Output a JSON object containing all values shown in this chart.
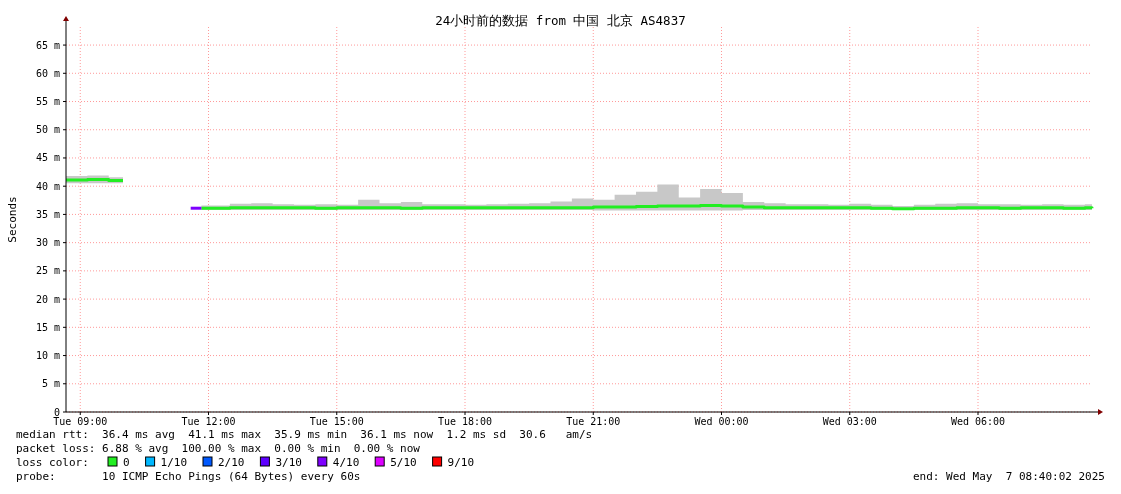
{
  "chart_data": {
    "type": "line",
    "title": "24小时前的数据 from 中国 北京 AS4837",
    "ylabel": "Seconds",
    "legend_title": "loss color:",
    "legend": "bottom",
    "grid": true,
    "line_style": "solid",
    "marker": "none",
    "x": [
      "2025-05-06T08:40",
      "2025-05-06T09:10",
      "2025-05-06T09:40",
      "2025-05-06T10:00",
      "2025-05-06T10:30",
      "2025-05-06T11:35",
      "2025-05-06T11:50",
      "2025-05-06T12:30",
      "2025-05-06T13:00",
      "2025-05-06T13:30",
      "2025-05-06T14:00",
      "2025-05-06T14:30",
      "2025-05-06T15:00",
      "2025-05-06T15:30",
      "2025-05-06T16:00",
      "2025-05-06T16:30",
      "2025-05-06T17:00",
      "2025-05-06T17:30",
      "2025-05-06T18:00",
      "2025-05-06T18:30",
      "2025-05-06T19:00",
      "2025-05-06T19:30",
      "2025-05-06T20:00",
      "2025-05-06T20:30",
      "2025-05-06T21:00",
      "2025-05-06T21:30",
      "2025-05-06T22:00",
      "2025-05-06T22:30",
      "2025-05-06T23:00",
      "2025-05-06T23:30",
      "2025-05-07T00:00",
      "2025-05-07T00:30",
      "2025-05-07T01:00",
      "2025-05-07T01:30",
      "2025-05-07T02:00",
      "2025-05-07T02:30",
      "2025-05-07T03:00",
      "2025-05-07T03:30",
      "2025-05-07T04:00",
      "2025-05-07T04:30",
      "2025-05-07T05:00",
      "2025-05-07T05:30",
      "2025-05-07T06:00",
      "2025-05-07T06:30",
      "2025-05-07T07:00",
      "2025-05-07T07:30",
      "2025-05-07T08:00",
      "2025-05-07T08:30",
      "2025-05-07T08:40"
    ],
    "series": [
      {
        "name": "0",
        "color": "#22ee22",
        "values": [
          41.1,
          41.2,
          41.0,
          41.0,
          null,
          null,
          36.1,
          36.2,
          36.2,
          36.2,
          36.2,
          36.1,
          36.2,
          36.2,
          36.2,
          36.1,
          36.2,
          36.2,
          36.2,
          36.2,
          36.2,
          36.2,
          36.2,
          36.2,
          36.3,
          36.3,
          36.4,
          36.5,
          36.5,
          36.6,
          36.5,
          36.3,
          36.2,
          36.2,
          36.2,
          36.2,
          36.2,
          36.1,
          36.0,
          36.1,
          36.1,
          36.2,
          36.2,
          36.1,
          36.2,
          36.2,
          36.1,
          36.2,
          36.1
        ],
        "lower": [
          40.5,
          40.5,
          40.5,
          40.5,
          null,
          null,
          35.8,
          35.8,
          35.8,
          35.8,
          35.8,
          35.8,
          35.8,
          35.8,
          35.8,
          35.8,
          35.8,
          35.8,
          35.8,
          35.8,
          35.8,
          35.8,
          35.8,
          35.8,
          35.7,
          35.7,
          35.7,
          35.7,
          35.7,
          35.7,
          35.7,
          35.8,
          35.8,
          35.8,
          35.8,
          35.8,
          35.8,
          35.8,
          35.8,
          35.8,
          35.8,
          35.8,
          35.8,
          35.8,
          35.8,
          35.8,
          35.8,
          35.8,
          35.8
        ],
        "upper": [
          41.8,
          41.9,
          41.6,
          41.6,
          null,
          null,
          36.6,
          36.9,
          37.0,
          36.8,
          36.7,
          36.8,
          36.7,
          37.6,
          37.0,
          37.2,
          36.8,
          36.8,
          36.7,
          36.8,
          36.9,
          37.0,
          37.3,
          37.8,
          37.6,
          38.5,
          39.0,
          40.3,
          38.0,
          39.5,
          38.8,
          37.2,
          37.0,
          36.8,
          36.8,
          36.7,
          36.9,
          36.7,
          36.5,
          36.7,
          36.9,
          37.0,
          36.8,
          36.8,
          36.7,
          36.8,
          36.7,
          36.8,
          36.7
        ]
      },
      {
        "name": "1/10",
        "color": "#00b8ff",
        "values": [
          null,
          null,
          null,
          null,
          null,
          null,
          null,
          null,
          null,
          null,
          null,
          null,
          null,
          null,
          null,
          null,
          null,
          null,
          null,
          null,
          null,
          null,
          null,
          null,
          null,
          null,
          null,
          null,
          null,
          null,
          null,
          null,
          null,
          null,
          null,
          null,
          null,
          null,
          null,
          null,
          null,
          null,
          null,
          null,
          null,
          null,
          null,
          null,
          null
        ]
      },
      {
        "name": "2/10",
        "color": "#0059ff",
        "values": [
          null,
          null,
          null,
          null,
          null,
          null,
          null,
          null,
          null,
          null,
          null,
          null,
          null,
          null,
          null,
          null,
          null,
          null,
          null,
          null,
          null,
          null,
          null,
          null,
          null,
          null,
          null,
          null,
          null,
          null,
          null,
          null,
          null,
          null,
          null,
          null,
          null,
          null,
          null,
          null,
          null,
          null,
          null,
          null,
          null,
          null,
          null,
          null,
          null
        ]
      },
      {
        "name": "3/10",
        "color": "#5e00ff",
        "values": [
          null,
          null,
          null,
          null,
          null,
          null,
          null,
          null,
          null,
          null,
          null,
          null,
          null,
          null,
          null,
          null,
          null,
          null,
          null,
          null,
          null,
          null,
          null,
          null,
          null,
          null,
          null,
          null,
          null,
          null,
          null,
          null,
          null,
          null,
          null,
          null,
          null,
          null,
          null,
          null,
          null,
          null,
          null,
          null,
          null,
          null,
          null,
          null,
          null
        ]
      },
      {
        "name": "4/10",
        "color": "#7e00ff",
        "values": [
          null,
          null,
          null,
          null,
          null,
          36.1,
          36.1,
          null,
          null,
          null,
          null,
          null,
          null,
          null,
          null,
          null,
          null,
          null,
          null,
          null,
          null,
          null,
          null,
          null,
          null,
          null,
          null,
          null,
          null,
          null,
          null,
          null,
          null,
          null,
          null,
          null,
          null,
          null,
          null,
          null,
          null,
          null,
          null,
          null,
          null,
          null,
          null,
          null,
          null
        ]
      },
      {
        "name": "5/10",
        "color": "#dd00ff",
        "values": [
          null,
          null,
          null,
          null,
          null,
          null,
          null,
          null,
          null,
          null,
          null,
          null,
          null,
          null,
          null,
          null,
          null,
          null,
          null,
          null,
          null,
          null,
          null,
          null,
          null,
          null,
          null,
          null,
          null,
          null,
          null,
          null,
          null,
          null,
          null,
          null,
          null,
          null,
          null,
          null,
          null,
          null,
          null,
          null,
          null,
          null,
          null,
          null,
          null
        ]
      },
      {
        "name": "9/10",
        "color": "#ff0000",
        "values": [
          null,
          null,
          null,
          null,
          null,
          null,
          null,
          null,
          null,
          null,
          null,
          null,
          null,
          null,
          null,
          null,
          null,
          null,
          null,
          null,
          null,
          null,
          null,
          null,
          null,
          null,
          null,
          null,
          null,
          null,
          null,
          null,
          null,
          null,
          null,
          null,
          null,
          null,
          null,
          null,
          null,
          null,
          null,
          null,
          null,
          null,
          null,
          null,
          null
        ]
      }
    ],
    "xlim": [
      "2025-05-06T08:40",
      "2025-05-07T08:40"
    ],
    "xticks": [
      {
        "value": "2025-05-06T09:00",
        "label": "Tue 09:00"
      },
      {
        "value": "2025-05-06T12:00",
        "label": "Tue 12:00"
      },
      {
        "value": "2025-05-06T15:00",
        "label": "Tue 15:00"
      },
      {
        "value": "2025-05-06T18:00",
        "label": "Tue 18:00"
      },
      {
        "value": "2025-05-06T21:00",
        "label": "Tue 21:00"
      },
      {
        "value": "2025-05-07T00:00",
        "label": "Wed 00:00"
      },
      {
        "value": "2025-05-07T03:00",
        "label": "Wed 03:00"
      },
      {
        "value": "2025-05-07T06:00",
        "label": "Wed 06:00"
      }
    ],
    "ylim": [
      0,
      68.2
    ],
    "yticks": [
      0,
      {
        "value": 5,
        "label": "5 m"
      },
      {
        "value": 10,
        "label": "10 m"
      },
      {
        "value": 15,
        "label": "15 m"
      },
      {
        "value": 20,
        "label": "20 m"
      },
      {
        "value": 25,
        "label": "25 m"
      },
      {
        "value": 30,
        "label": "30 m"
      },
      {
        "value": 35,
        "label": "35 m"
      },
      {
        "value": 40,
        "label": "40 m"
      },
      {
        "value": 45,
        "label": "45 m"
      },
      {
        "value": 50,
        "label": "50 m"
      },
      {
        "value": 55,
        "label": "55 m"
      },
      {
        "value": 60,
        "label": "60 m"
      },
      {
        "value": 65,
        "label": "65 m"
      }
    ],
    "annotations": [
      "median rtt:  36.4 ms avg  41.1 ms max  35.9 ms min  36.1 ms now  1.2 ms sd  30.6   am/s",
      "packet loss: 6.88 % avg  100.00 % max  0.00 % min  0.00 % now",
      "probe:       10 ICMP Echo Pings (64 Bytes) every 60s",
      "end: Wed May  7 08:40:02 2025"
    ]
  }
}
